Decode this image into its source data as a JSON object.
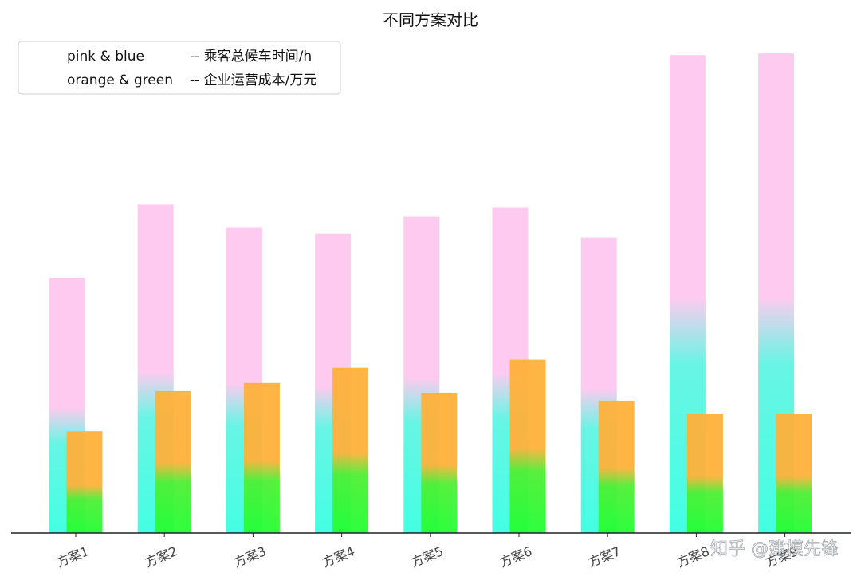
{
  "chart_data": {
    "type": "bar",
    "title": "不同方案对比",
    "categories": [
      "方案1",
      "方案2",
      "方案3",
      "方案4",
      "方案5",
      "方案6",
      "方案7",
      "方案8",
      "方案9"
    ],
    "series": [
      {
        "name": "pink & blue",
        "values": [
          318,
          410,
          381,
          373,
          395,
          406,
          368,
          596,
          598
        ],
        "gradient_split": [
          150,
          193,
          180,
          176,
          186,
          192,
          174,
          282,
          283
        ],
        "colors": {
          "bottom": "#33ffe0",
          "middle": "#b9c5e8",
          "top": "#ffc6ee"
        }
      },
      {
        "name": "orange & green",
        "values": [
          127,
          177,
          187,
          206,
          175,
          216,
          165,
          149,
          149
        ],
        "gradient_split": [
          57,
          84,
          87,
          97,
          82,
          102,
          78,
          68,
          68
        ],
        "colors": {
          "bottom": "#22ff33",
          "middle": "#b8d233",
          "top": "#ffb13a"
        }
      }
    ],
    "ylim": [
      0,
      620
    ],
    "xlabel": "",
    "ylabel": "",
    "legend": {
      "placement": "top-left",
      "entries": [
        {
          "label": "pink & blue",
          "desc": "-- 乘客总候车时间/h"
        },
        {
          "label": "orange & green",
          "desc": "-- 企业运营成本/万元"
        }
      ]
    },
    "grid": false
  },
  "watermark": "知乎 @建模先锋"
}
